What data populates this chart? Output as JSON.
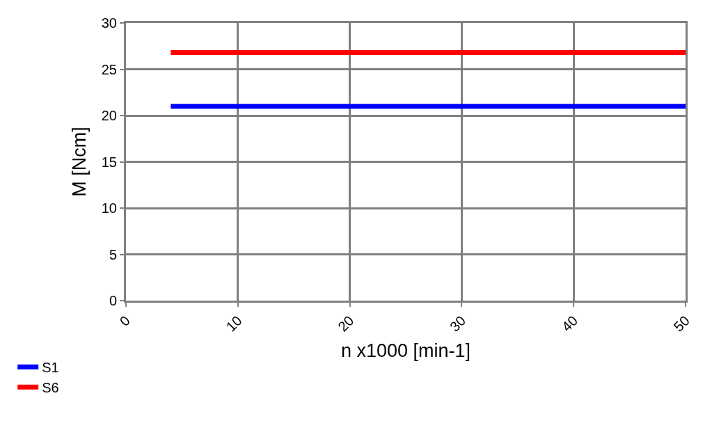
{
  "chart_data": {
    "type": "line",
    "xlabel": "n x1000 [min-1]",
    "ylabel": "M [Ncm]",
    "x": [
      4,
      50
    ],
    "xlim": [
      0,
      50
    ],
    "xticks": [
      0,
      10,
      20,
      30,
      40,
      50
    ],
    "ylim": [
      0,
      30
    ],
    "yticks": [
      0,
      5,
      10,
      15,
      20,
      25,
      30
    ],
    "grid": true,
    "legend": "bottom left",
    "marker": "none",
    "line_style": "solid",
    "series": [
      {
        "name": "S1",
        "color": "#0000ff",
        "values": [
          21,
          21
        ]
      },
      {
        "name": "S6",
        "color": "#ff0000",
        "values": [
          26.8,
          26.8
        ]
      }
    ]
  }
}
